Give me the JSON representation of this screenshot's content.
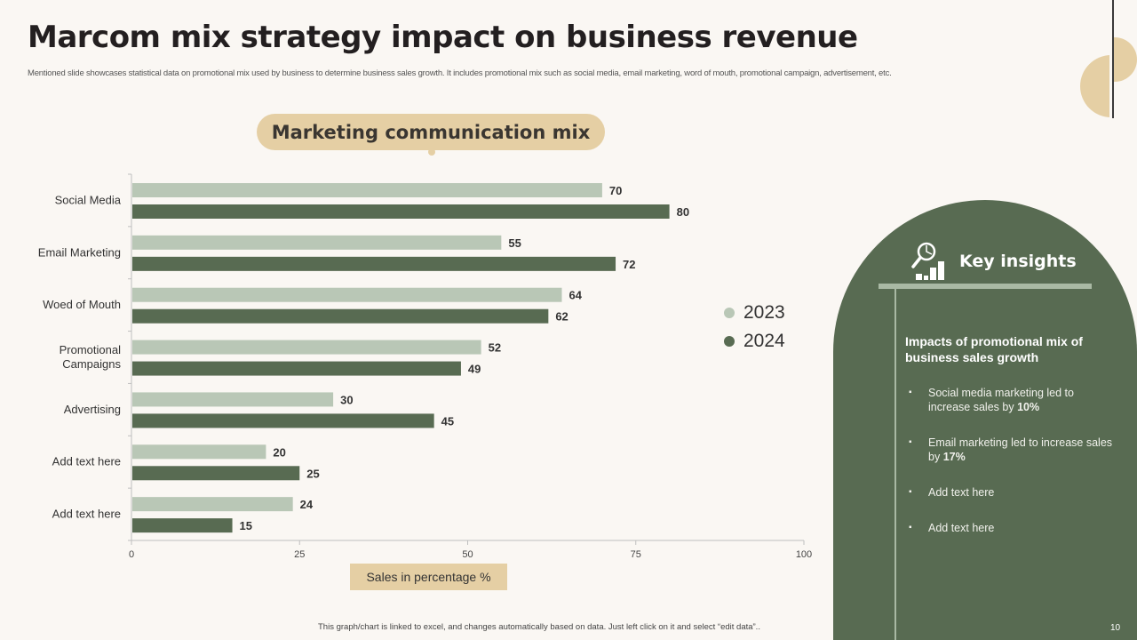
{
  "slide": {
    "title": "Marcom mix strategy impact on business revenue",
    "subtitle": "Mentioned slide showcases statistical data on promotional mix used by business to determine business sales growth. It includes promotional mix such as social media, email marketing, word of mouth, promotional campaign, advertisement, etc.",
    "footnote": "This graph/chart is linked to excel, and changes automatically based on data. Just left click on it and select “edit data”..",
    "page_number": "10"
  },
  "colors": {
    "accent_tan": "#e5cfa4",
    "series_2023": "#b9c7b6",
    "series_2024": "#586b52",
    "panel_green": "#586b52"
  },
  "chart_data": {
    "type": "bar",
    "orientation": "horizontal",
    "title": "Marketing communication mix",
    "xlabel": "Sales in percentage %",
    "ylabel": "",
    "categories": [
      "Social Media",
      "Email Marketing",
      "Woed of Mouth",
      "Promotional Campaigns",
      "Advertising",
      "Add text here",
      "Add text here"
    ],
    "series": [
      {
        "name": "2023",
        "values": [
          70,
          55,
          64,
          52,
          30,
          20,
          24
        ]
      },
      {
        "name": "2024",
        "values": [
          80,
          72,
          62,
          49,
          45,
          25,
          15
        ]
      }
    ],
    "xlim": [
      0,
      100
    ],
    "xticks": [
      0,
      25,
      50,
      75,
      100
    ],
    "grid": false,
    "legend_position": "right"
  },
  "insights": {
    "icon": "magnifier-chart-icon",
    "title": "Key insights",
    "heading": "Impacts of promotional mix of business sales growth",
    "items": [
      {
        "text": "Social media marketing led to increase sales by ",
        "bold": "10%"
      },
      {
        "text": "Email marketing led to increase sales by ",
        "bold": "17%"
      },
      {
        "text": "Add text here",
        "bold": ""
      },
      {
        "text": "Add text here",
        "bold": ""
      }
    ]
  }
}
